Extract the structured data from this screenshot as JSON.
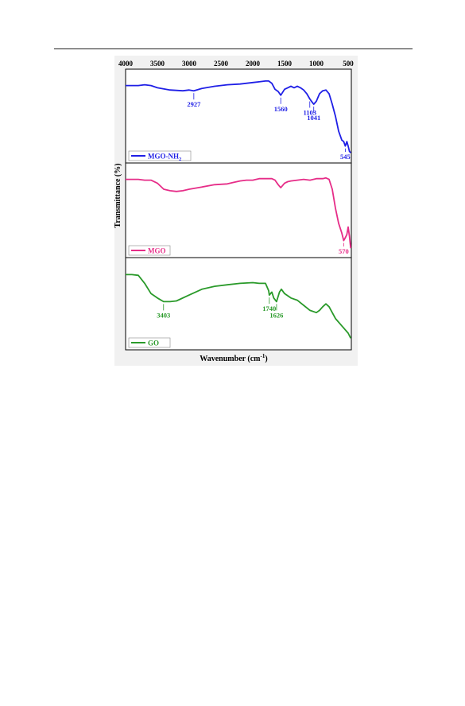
{
  "chart_data": {
    "type": "line",
    "xlabel": "Wavenumber (cm",
    "xlabel_sup": "-1",
    "xlabel_close": ")",
    "ylabel": "Transmittance (%)",
    "xlim": [
      4000,
      450
    ],
    "x_reversed": true,
    "xticks": [
      4000,
      3500,
      3000,
      2500,
      2000,
      1500,
      1000,
      500
    ],
    "xtick_labels": [
      "4000",
      "3500",
      "3000",
      "2500",
      "2000",
      "1500",
      "1000",
      "500"
    ],
    "ylim": [
      0,
      100
    ],
    "grid": false,
    "legend_position": "bottom-left",
    "panels": [
      {
        "legend": "MGO-NH",
        "legend_sub": "2",
        "color": "#1f1fe6",
        "points": [
          [
            4000,
            93
          ],
          [
            3800,
            93
          ],
          [
            3700,
            94
          ],
          [
            3600,
            93
          ],
          [
            3500,
            90
          ],
          [
            3300,
            87
          ],
          [
            3100,
            86
          ],
          [
            3000,
            87
          ],
          [
            2927,
            86
          ],
          [
            2800,
            89
          ],
          [
            2600,
            92
          ],
          [
            2400,
            94
          ],
          [
            2200,
            95
          ],
          [
            2000,
            97
          ],
          [
            1900,
            98
          ],
          [
            1800,
            99
          ],
          [
            1750,
            99
          ],
          [
            1700,
            96
          ],
          [
            1650,
            88
          ],
          [
            1600,
            85
          ],
          [
            1560,
            80
          ],
          [
            1500,
            88
          ],
          [
            1450,
            90
          ],
          [
            1400,
            92
          ],
          [
            1350,
            90
          ],
          [
            1300,
            92
          ],
          [
            1250,
            90
          ],
          [
            1200,
            87
          ],
          [
            1150,
            82
          ],
          [
            1103,
            75
          ],
          [
            1060,
            70
          ],
          [
            1041,
            68
          ],
          [
            1000,
            72
          ],
          [
            950,
            82
          ],
          [
            900,
            86
          ],
          [
            850,
            87
          ],
          [
            800,
            82
          ],
          [
            750,
            68
          ],
          [
            700,
            52
          ],
          [
            650,
            32
          ],
          [
            600,
            20
          ],
          [
            570,
            18
          ],
          [
            545,
            12
          ],
          [
            520,
            18
          ],
          [
            500,
            12
          ],
          [
            480,
            5
          ],
          [
            460,
            3
          ]
        ],
        "annotations": [
          {
            "label": "2927",
            "x": 2927
          },
          {
            "label": "1560",
            "x": 1560
          },
          {
            "label": "1103",
            "x": 1103
          },
          {
            "label": "1041",
            "x": 1041
          },
          {
            "label": "545",
            "x": 545
          }
        ]
      },
      {
        "legend": "MGO",
        "legend_sub": "",
        "color": "#e62d88",
        "points": [
          [
            4000,
            93
          ],
          [
            3800,
            93
          ],
          [
            3700,
            92
          ],
          [
            3600,
            92
          ],
          [
            3500,
            88
          ],
          [
            3400,
            80
          ],
          [
            3300,
            78
          ],
          [
            3200,
            77
          ],
          [
            3100,
            78
          ],
          [
            3000,
            80
          ],
          [
            2800,
            83
          ],
          [
            2600,
            86
          ],
          [
            2400,
            87
          ],
          [
            2300,
            89
          ],
          [
            2200,
            91
          ],
          [
            2100,
            92
          ],
          [
            2000,
            92
          ],
          [
            1900,
            94
          ],
          [
            1800,
            94
          ],
          [
            1700,
            94
          ],
          [
            1650,
            92
          ],
          [
            1600,
            86
          ],
          [
            1560,
            82
          ],
          [
            1500,
            88
          ],
          [
            1450,
            90
          ],
          [
            1400,
            91
          ],
          [
            1300,
            92
          ],
          [
            1200,
            93
          ],
          [
            1100,
            92
          ],
          [
            1000,
            94
          ],
          [
            900,
            94
          ],
          [
            850,
            95
          ],
          [
            800,
            93
          ],
          [
            750,
            80
          ],
          [
            700,
            55
          ],
          [
            650,
            35
          ],
          [
            600,
            22
          ],
          [
            570,
            12
          ],
          [
            550,
            15
          ],
          [
            520,
            20
          ],
          [
            500,
            30
          ],
          [
            480,
            18
          ],
          [
            460,
            2
          ]
        ],
        "annotations": [
          {
            "label": "570",
            "x": 570
          }
        ]
      },
      {
        "legend": "GO",
        "legend_sub": "",
        "color": "#2a9a2a",
        "points": [
          [
            4000,
            92
          ],
          [
            3900,
            92
          ],
          [
            3800,
            91
          ],
          [
            3700,
            80
          ],
          [
            3600,
            66
          ],
          [
            3500,
            60
          ],
          [
            3403,
            55
          ],
          [
            3300,
            55
          ],
          [
            3200,
            56
          ],
          [
            3000,
            64
          ],
          [
            2800,
            72
          ],
          [
            2600,
            76
          ],
          [
            2400,
            78
          ],
          [
            2200,
            80
          ],
          [
            2000,
            81
          ],
          [
            1900,
            80
          ],
          [
            1800,
            80
          ],
          [
            1750,
            70
          ],
          [
            1740,
            64
          ],
          [
            1700,
            68
          ],
          [
            1670,
            60
          ],
          [
            1626,
            55
          ],
          [
            1580,
            68
          ],
          [
            1550,
            72
          ],
          [
            1500,
            66
          ],
          [
            1400,
            60
          ],
          [
            1300,
            57
          ],
          [
            1200,
            50
          ],
          [
            1100,
            43
          ],
          [
            1000,
            40
          ],
          [
            950,
            43
          ],
          [
            900,
            48
          ],
          [
            850,
            52
          ],
          [
            800,
            48
          ],
          [
            750,
            40
          ],
          [
            700,
            32
          ],
          [
            600,
            22
          ],
          [
            500,
            12
          ],
          [
            460,
            5
          ]
        ],
        "annotations": [
          {
            "label": "3403",
            "x": 3403
          },
          {
            "label": "1740",
            "x": 1740
          },
          {
            "label": "1626",
            "x": 1626
          }
        ]
      }
    ]
  }
}
